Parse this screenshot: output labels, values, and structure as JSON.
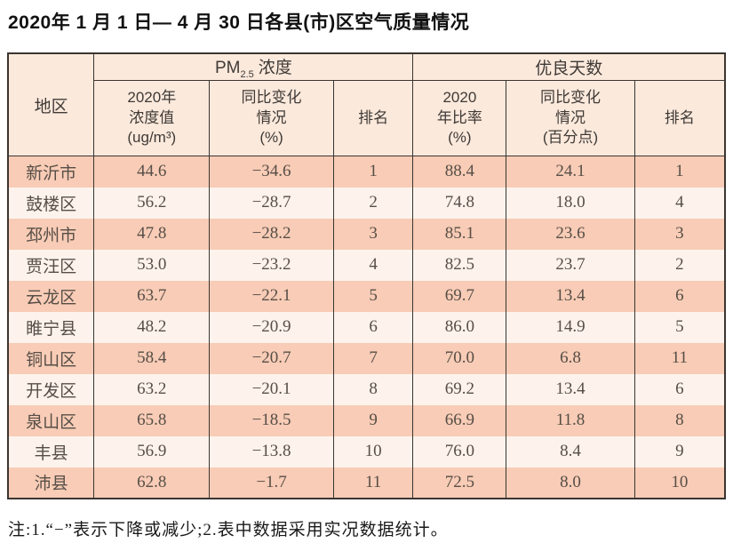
{
  "title": "2020年 1 月 1 日— 4 月 30 日各县(市)区空气质量情况",
  "table": {
    "region_header": "地区",
    "pm_group": {
      "prefix": "PM",
      "subscript": "2.5",
      "suffix": "浓度"
    },
    "good_days_group": "优良天数",
    "sub_headers": {
      "pm_value": "2020年\n浓度值\n(ug/m³)",
      "pm_change": "同比变化\n情况\n(%)",
      "pm_rank": "排名",
      "good_ratio": "2020\n年比率\n(%)",
      "good_change": "同比变化\n情况\n(百分点)",
      "good_rank": "排名"
    },
    "row_keys": [
      "region",
      "pm_value",
      "pm_change",
      "pm_rank",
      "good_ratio",
      "good_change",
      "good_rank"
    ],
    "rows": [
      {
        "region": "新沂市",
        "pm_value": "44.6",
        "pm_change": "−34.6",
        "pm_rank": "1",
        "good_ratio": "88.4",
        "good_change": "24.1",
        "good_rank": "1"
      },
      {
        "region": "鼓楼区",
        "pm_value": "56.2",
        "pm_change": "−28.7",
        "pm_rank": "2",
        "good_ratio": "74.8",
        "good_change": "18.0",
        "good_rank": "4"
      },
      {
        "region": "邳州市",
        "pm_value": "47.8",
        "pm_change": "−28.2",
        "pm_rank": "3",
        "good_ratio": "85.1",
        "good_change": "23.6",
        "good_rank": "3"
      },
      {
        "region": "贾汪区",
        "pm_value": "53.0",
        "pm_change": "−23.2",
        "pm_rank": "4",
        "good_ratio": "82.5",
        "good_change": "23.7",
        "good_rank": "2"
      },
      {
        "region": "云龙区",
        "pm_value": "63.7",
        "pm_change": "−22.1",
        "pm_rank": "5",
        "good_ratio": "69.7",
        "good_change": "13.4",
        "good_rank": "6"
      },
      {
        "region": "睢宁县",
        "pm_value": "48.2",
        "pm_change": "−20.9",
        "pm_rank": "6",
        "good_ratio": "86.0",
        "good_change": "14.9",
        "good_rank": "5"
      },
      {
        "region": "铜山区",
        "pm_value": "58.4",
        "pm_change": "−20.7",
        "pm_rank": "7",
        "good_ratio": "70.0",
        "good_change": "6.8",
        "good_rank": "11"
      },
      {
        "region": "开发区",
        "pm_value": "63.2",
        "pm_change": "−20.1",
        "pm_rank": "8",
        "good_ratio": "69.2",
        "good_change": "13.4",
        "good_rank": "6"
      },
      {
        "region": "泉山区",
        "pm_value": "65.8",
        "pm_change": "−18.5",
        "pm_rank": "9",
        "good_ratio": "66.9",
        "good_change": "11.8",
        "good_rank": "8"
      },
      {
        "region": "丰县",
        "pm_value": "56.9",
        "pm_change": "−13.8",
        "pm_rank": "10",
        "good_ratio": "76.0",
        "good_change": "8.4",
        "good_rank": "9"
      },
      {
        "region": "沛县",
        "pm_value": "62.8",
        "pm_change": "−1.7",
        "pm_rank": "11",
        "good_ratio": "72.5",
        "good_change": "8.0",
        "good_rank": "10"
      }
    ]
  },
  "note": "注:1.“−”表示下降或减少;2.表中数据采用实况数据统计。",
  "colors": {
    "header_bg": "#fbe9dc",
    "row_odd_bg": "#f8ccb6",
    "row_even_bg": "#fdf3ec",
    "border": "#3b3531"
  }
}
